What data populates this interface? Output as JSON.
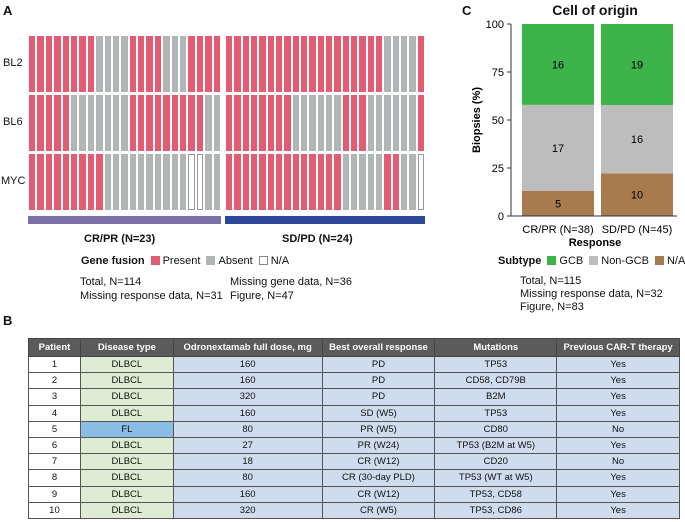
{
  "panels": {
    "a": "A",
    "b": "B",
    "c": "C"
  },
  "colors": {
    "present": "#e45c74",
    "absent": "#b2b5b6",
    "na": "#ffffff",
    "crpr": "#7a6fa6",
    "sdpd": "#2c4797",
    "gcb": "#3cb44a",
    "nongcb": "#bdbdbd",
    "subtype_na": "#a87b4f",
    "green_cell": "#dcedd4",
    "blue_cell": "#cfdcee",
    "fl_cell": "#8bbde4"
  },
  "chart_data": [
    {
      "type": "heatmap",
      "title": "Gene fusion",
      "rows": [
        "BL2",
        "BL6",
        "MYC"
      ],
      "groups": [
        {
          "name": "CR/PR (N=23)",
          "cells": [
            "PPPPPPPPAAAAPPPPAAAPPPP",
            "PPPPPAAAAAAAPPPPPPPPPAA",
            "PPPPPPPPPAAAAAAAAAANNAA"
          ]
        },
        {
          "name": "SD/PD (N=24)",
          "cells": [
            "PPPPPPPPPPPPPPPPPPPAAAAP",
            "PPPPPPPPAAAAAAPPPAAAAAAP",
            "PPPPPPPPPPPPPPAAAAAPPAAN"
          ]
        }
      ],
      "legend": {
        "title": "Gene fusion",
        "present": "Present",
        "absent": "Absent",
        "na": "N/A"
      },
      "notes_left": [
        "Total, N=114",
        "Missing response data, N=31"
      ],
      "notes_right": [
        "Missing gene data, N=36",
        "Figure, N=47"
      ]
    },
    {
      "type": "bar",
      "stacked": true,
      "title": "Cell of origin",
      "xlabel": "Response",
      "ylabel": "Biopsies (%)",
      "ylim": [
        0,
        100
      ],
      "yticks": [
        "0",
        "25",
        "50",
        "75",
        "100"
      ],
      "categories": [
        "CR/PR (N=38)",
        "SD/PD (N=45)"
      ],
      "series": [
        {
          "name": "N/A",
          "counts": [
            5,
            10
          ]
        },
        {
          "name": "Non-GCB",
          "counts": [
            17,
            16
          ]
        },
        {
          "name": "GCB",
          "counts": [
            16,
            19
          ]
        }
      ],
      "legend": {
        "title": "Subtype",
        "items": [
          "GCB",
          "Non-GCB",
          "N/A"
        ]
      },
      "notes": [
        "Total, N=115",
        "Missing response data, N=32",
        "Figure, N=83"
      ]
    }
  ],
  "table": {
    "headers": [
      "Patient",
      "Disease type",
      "Odronextamab full dose, mg",
      "Best overall response",
      "Mutations",
      "Previous CAR-T therapy"
    ],
    "rows": [
      [
        "1",
        "DLBCL",
        "160",
        "PD",
        "TP53",
        "Yes"
      ],
      [
        "2",
        "DLBCL",
        "160",
        "PD",
        "CD58, CD79B",
        "Yes"
      ],
      [
        "3",
        "DLBCL",
        "320",
        "PD",
        "B2M",
        "Yes"
      ],
      [
        "4",
        "DLBCL",
        "160",
        "SD (W5)",
        "TP53",
        "Yes"
      ],
      [
        "5",
        "FL",
        "80",
        "PR (W5)",
        "CD80",
        "No"
      ],
      [
        "6",
        "DLBCL",
        "27",
        "PR (W24)",
        "TP53 (B2M at W5)",
        "Yes"
      ],
      [
        "7",
        "DLBCL",
        "18",
        "CR (W12)",
        "CD20",
        "No"
      ],
      [
        "8",
        "DLBCL",
        "80",
        "CR (30-day PLD)",
        "TP53 (WT at W5)",
        "Yes"
      ],
      [
        "9",
        "DLBCL",
        "160",
        "CR (W12)",
        "TP53, CD58",
        "Yes"
      ],
      [
        "10",
        "DLBCL",
        "320",
        "CR (W5)",
        "TP53, CD86",
        "Yes"
      ]
    ]
  }
}
